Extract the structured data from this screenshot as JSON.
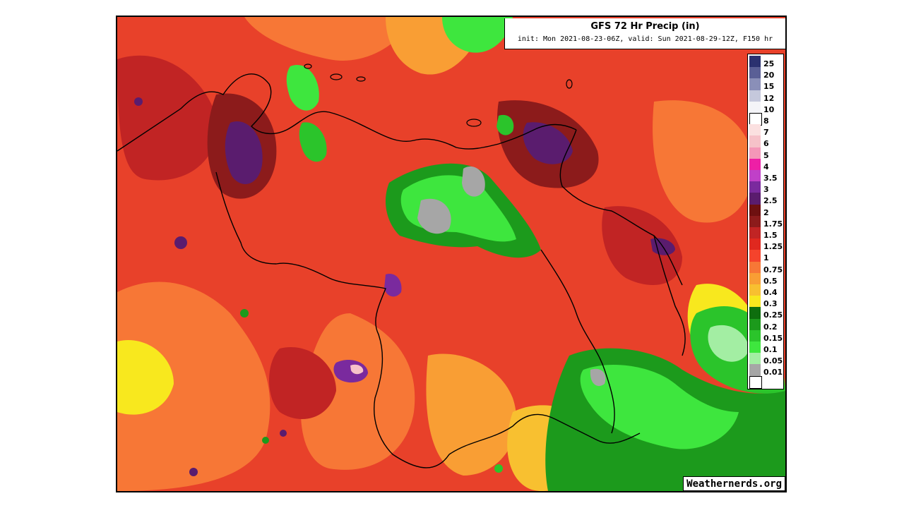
{
  "map": {
    "title": "GFS 72 Hr Precip (in)",
    "subtitle": "init: Mon 2021-08-23-06Z, valid: Sun 2021-08-29-12Z, F150 hr",
    "watermark": "Weathernerds.org",
    "legend": [
      {
        "label": "25",
        "color": "#2b3170"
      },
      {
        "label": "20",
        "color": "#5a5f96"
      },
      {
        "label": "15",
        "color": "#8a8fb8"
      },
      {
        "label": "12",
        "color": "#c5c8dc"
      },
      {
        "label": "10",
        "color": "#f4f4f8"
      },
      {
        "label": "8",
        "color": "#ffffff"
      },
      {
        "label": "7",
        "color": "#fbe0e0"
      },
      {
        "label": "6",
        "color": "#f6c2c9"
      },
      {
        "label": "5",
        "color": "#f497b8"
      },
      {
        "label": "4",
        "color": "#ee1fa6"
      },
      {
        "label": "3.5",
        "color": "#c040c8"
      },
      {
        "label": "3",
        "color": "#7a2a9e"
      },
      {
        "label": "2.5",
        "color": "#5a1c6e"
      },
      {
        "label": "2",
        "color": "#6e1010"
      },
      {
        "label": "1.75",
        "color": "#8c1b1b"
      },
      {
        "label": "1.5",
        "color": "#c12424"
      },
      {
        "label": "1.25",
        "color": "#e0281f"
      },
      {
        "label": "1",
        "color": "#f5432c"
      },
      {
        "label": "0.75",
        "color": "#f77736"
      },
      {
        "label": "0.5",
        "color": "#f99e34"
      },
      {
        "label": "0.4",
        "color": "#f8c030"
      },
      {
        "label": "0.3",
        "color": "#f8e81e"
      },
      {
        "label": "0.25",
        "color": "#0e6e0e"
      },
      {
        "label": "0.2",
        "color": "#1c9a1c"
      },
      {
        "label": "0.15",
        "color": "#2bc42b"
      },
      {
        "label": "0.1",
        "color": "#3ee63e"
      },
      {
        "label": "0.05",
        "color": "#a3eea3"
      },
      {
        "label": "0.01",
        "color": "#a6a6a6"
      },
      {
        "label": "",
        "color": "#ffffff"
      }
    ]
  }
}
